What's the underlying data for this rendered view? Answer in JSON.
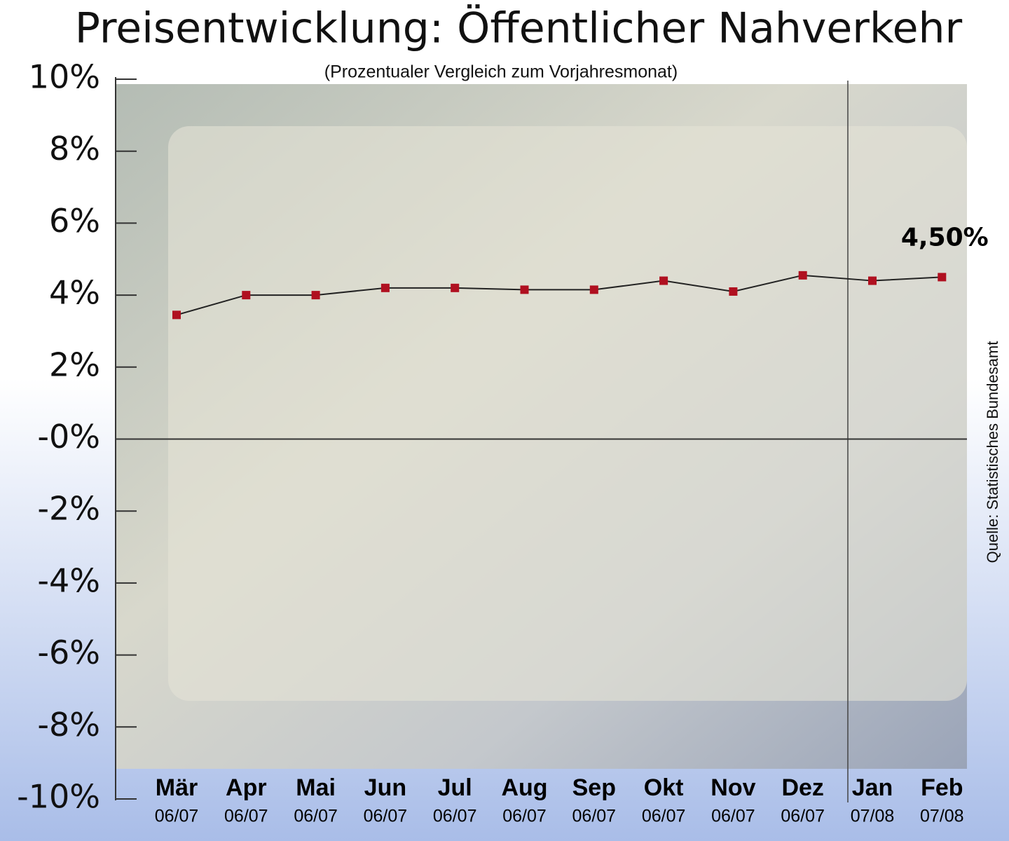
{
  "chart_data": {
    "type": "line",
    "title": "Preisentwicklung: Öffentlicher Nahverkehr",
    "subtitle": "(Prozentualer Vergleich zum Vorjahresmonat)",
    "source": "Quelle: Statistisches Bundesamt",
    "categories": [
      "Mär",
      "Apr",
      "Mai",
      "Jun",
      "Jul",
      "Aug",
      "Sep",
      "Okt",
      "Nov",
      "Dez",
      "Jan",
      "Feb"
    ],
    "category_sublabels": [
      "06/07",
      "06/07",
      "06/07",
      "06/07",
      "06/07",
      "06/07",
      "06/07",
      "06/07",
      "06/07",
      "06/07",
      "07/08",
      "07/08"
    ],
    "values": [
      3.45,
      4.0,
      4.0,
      4.2,
      4.2,
      4.15,
      4.15,
      4.4,
      4.1,
      4.55,
      4.4,
      4.5
    ],
    "value_labels": [
      null,
      null,
      null,
      null,
      null,
      null,
      null,
      null,
      null,
      null,
      null,
      "4,50%"
    ],
    "line_color": "#222222",
    "marker_color": "#b01020",
    "ylim": [
      -10,
      10
    ],
    "yticks": [
      {
        "value": 10,
        "label": "10%"
      },
      {
        "value": 8,
        "label": "8%"
      },
      {
        "value": 6,
        "label": "6%"
      },
      {
        "value": 4,
        "label": "4%"
      },
      {
        "value": 2,
        "label": "2%"
      },
      {
        "value": 0,
        "label": "-0%"
      },
      {
        "value": -2,
        "label": "-2%"
      },
      {
        "value": -4,
        "label": "-4%"
      },
      {
        "value": -6,
        "label": "-6%"
      },
      {
        "value": -8,
        "label": "-8%"
      },
      {
        "value": -10,
        "label": "-10%"
      }
    ]
  }
}
